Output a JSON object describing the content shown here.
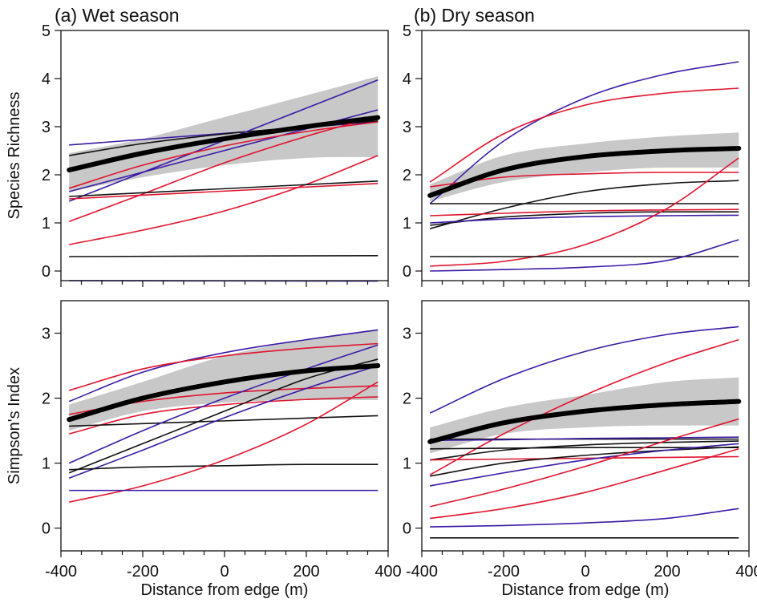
{
  "colors": {
    "black": "#111111",
    "red": "#e0142d",
    "blue": "#3a1aa6",
    "band": "#c8c8c8",
    "mean": "#000000"
  },
  "chart_data": [
    {
      "type": "line",
      "title": "(a) Wet season",
      "xlabel": "",
      "ylabel": "Species Richness",
      "xlim": [
        -400,
        400
      ],
      "ylim": [
        -0.2,
        5
      ],
      "x_ticks": [
        -400,
        -200,
        0,
        200,
        400
      ],
      "y_ticks": [
        0,
        1,
        2,
        3,
        4,
        5
      ],
      "x_tick_labels": [],
      "y_tick_labels": [
        "0",
        "1",
        "2",
        "3",
        "4",
        "5"
      ],
      "band": {
        "x": [
          -380,
          -200,
          0,
          200,
          375
        ],
        "lower": [
          1.65,
          1.95,
          2.2,
          2.35,
          2.37
        ],
        "upper": [
          2.45,
          2.75,
          3.2,
          3.65,
          4.05
        ]
      },
      "mean": {
        "x": [
          -380,
          -200,
          0,
          200,
          375
        ],
        "y": [
          2.1,
          2.45,
          2.75,
          3.0,
          3.19
        ]
      },
      "series": [
        {
          "color": "blue",
          "x": [
            -380,
            375
          ],
          "y": [
            2.62,
            3.1
          ]
        },
        {
          "color": "black",
          "x": [
            -380,
            -200,
            0,
            200,
            375
          ],
          "y": [
            2.4,
            2.65,
            2.85,
            3.0,
            3.12
          ]
        },
        {
          "color": "blue",
          "x": [
            -380,
            375
          ],
          "y": [
            1.45,
            3.97
          ]
        },
        {
          "color": "blue",
          "x": [
            -380,
            375
          ],
          "y": [
            1.65,
            3.35
          ]
        },
        {
          "color": "red",
          "x": [
            -380,
            -200,
            0,
            200,
            375
          ],
          "y": [
            1.72,
            2.2,
            2.6,
            2.9,
            3.1
          ]
        },
        {
          "color": "red",
          "x": [
            -380,
            -200,
            0,
            200,
            375
          ],
          "y": [
            1.03,
            1.6,
            2.25,
            2.8,
            3.22
          ]
        },
        {
          "color": "red",
          "x": [
            -380,
            -200,
            0,
            200,
            375
          ],
          "y": [
            0.55,
            0.85,
            1.25,
            1.8,
            2.4
          ]
        },
        {
          "color": "black",
          "x": [
            -380,
            375
          ],
          "y": [
            1.55,
            1.87
          ]
        },
        {
          "color": "red",
          "x": [
            -380,
            375
          ],
          "y": [
            1.5,
            1.82
          ]
        },
        {
          "color": "black",
          "x": [
            -380,
            375
          ],
          "y": [
            0.3,
            0.32
          ]
        },
        {
          "color": "blue",
          "x": [
            -380,
            375
          ],
          "y": [
            -0.2,
            -0.21
          ]
        }
      ]
    },
    {
      "type": "line",
      "title": "(b) Dry season",
      "xlabel": "",
      "ylabel": "",
      "xlim": [
        -400,
        400
      ],
      "ylim": [
        -0.2,
        5
      ],
      "x_ticks": [
        -400,
        -200,
        0,
        200,
        400
      ],
      "y_ticks": [
        0,
        1,
        2,
        3,
        4,
        5
      ],
      "x_tick_labels": [],
      "y_tick_labels": [
        "0",
        "1",
        "2",
        "3",
        "4",
        "5"
      ],
      "band": {
        "x": [
          -380,
          -200,
          0,
          200,
          375
        ],
        "lower": [
          1.45,
          1.85,
          2.05,
          2.15,
          2.15
        ],
        "upper": [
          1.8,
          2.4,
          2.65,
          2.8,
          2.88
        ]
      },
      "mean": {
        "x": [
          -380,
          -200,
          0,
          200,
          375
        ],
        "y": [
          1.57,
          2.1,
          2.38,
          2.5,
          2.55
        ]
      },
      "series": [
        {
          "color": "blue",
          "x": [
            -380,
            -200,
            0,
            200,
            375
          ],
          "y": [
            1.4,
            2.7,
            3.6,
            4.1,
            4.35
          ]
        },
        {
          "color": "red",
          "x": [
            -380,
            -200,
            0,
            200,
            375
          ],
          "y": [
            1.85,
            2.85,
            3.45,
            3.7,
            3.8
          ]
        },
        {
          "color": "red",
          "x": [
            -380,
            -200,
            0,
            200,
            375
          ],
          "y": [
            1.75,
            1.95,
            2.02,
            2.05,
            2.05
          ]
        },
        {
          "color": "black",
          "x": [
            -380,
            -200,
            0,
            200,
            375
          ],
          "y": [
            0.88,
            1.3,
            1.65,
            1.82,
            1.88
          ]
        },
        {
          "color": "black",
          "x": [
            -380,
            375
          ],
          "y": [
            1.4,
            1.4
          ]
        },
        {
          "color": "red",
          "x": [
            -380,
            -200,
            0,
            200,
            375
          ],
          "y": [
            1.15,
            1.2,
            1.25,
            1.27,
            1.28
          ]
        },
        {
          "color": "black",
          "x": [
            -380,
            -200,
            0,
            200,
            375
          ],
          "y": [
            0.95,
            1.12,
            1.2,
            1.23,
            1.23
          ]
        },
        {
          "color": "blue",
          "x": [
            -380,
            -200,
            0,
            200,
            375
          ],
          "y": [
            1.0,
            1.08,
            1.13,
            1.15,
            1.16
          ]
        },
        {
          "color": "red",
          "x": [
            -380,
            -200,
            0,
            200,
            375
          ],
          "y": [
            0.1,
            0.2,
            0.55,
            1.3,
            2.35
          ]
        },
        {
          "color": "black",
          "x": [
            -380,
            375
          ],
          "y": [
            0.3,
            0.3
          ]
        },
        {
          "color": "blue",
          "x": [
            -380,
            -200,
            0,
            200,
            375
          ],
          "y": [
            0.0,
            0.03,
            0.08,
            0.22,
            0.65
          ]
        }
      ]
    },
    {
      "type": "line",
      "title": "",
      "xlabel": "Distance from edge (m)",
      "ylabel": "Simpson's Index",
      "xlim": [
        -400,
        400
      ],
      "ylim": [
        -0.35,
        3.5
      ],
      "x_ticks": [
        -400,
        -200,
        0,
        200,
        400
      ],
      "y_ticks": [
        0,
        1,
        2,
        3
      ],
      "x_tick_labels": [
        "-400",
        "-200",
        "0",
        "200",
        "400"
      ],
      "y_tick_labels": [
        "0",
        "1",
        "2",
        "3"
      ],
      "band": {
        "x": [
          -380,
          -200,
          0,
          200,
          375
        ],
        "lower": [
          1.5,
          1.8,
          1.93,
          1.97,
          1.97
        ],
        "upper": [
          1.9,
          2.25,
          2.65,
          2.9,
          3.05
        ]
      },
      "mean": {
        "x": [
          -380,
          -200,
          0,
          200,
          375
        ],
        "y": [
          1.67,
          2.0,
          2.25,
          2.42,
          2.5
        ]
      },
      "series": [
        {
          "color": "blue",
          "x": [
            -380,
            -200,
            0,
            200,
            375
          ],
          "y": [
            1.95,
            2.4,
            2.7,
            2.9,
            3.05
          ]
        },
        {
          "color": "red",
          "x": [
            -380,
            -200,
            0,
            200,
            375
          ],
          "y": [
            2.12,
            2.45,
            2.65,
            2.77,
            2.84
          ]
        },
        {
          "color": "red",
          "x": [
            -380,
            -200,
            0,
            200,
            375
          ],
          "y": [
            1.75,
            1.95,
            2.08,
            2.15,
            2.19
          ]
        },
        {
          "color": "red",
          "x": [
            -380,
            -200,
            0,
            200,
            375
          ],
          "y": [
            1.45,
            1.75,
            1.9,
            1.98,
            2.02
          ]
        },
        {
          "color": "black",
          "x": [
            -380,
            375
          ],
          "y": [
            1.57,
            1.73
          ]
        },
        {
          "color": "blue",
          "x": [
            -380,
            -200,
            0,
            200,
            375
          ],
          "y": [
            1.0,
            1.5,
            2.0,
            2.45,
            2.82
          ]
        },
        {
          "color": "black",
          "x": [
            -380,
            -200,
            0,
            200,
            375
          ],
          "y": [
            0.85,
            1.3,
            1.8,
            2.3,
            2.6
          ]
        },
        {
          "color": "blue",
          "x": [
            -380,
            -200,
            0,
            200,
            375
          ],
          "y": [
            0.77,
            1.2,
            1.7,
            2.15,
            2.5
          ]
        },
        {
          "color": "black",
          "x": [
            -380,
            -200,
            0,
            200,
            375
          ],
          "y": [
            0.9,
            0.94,
            0.96,
            0.98,
            0.98
          ]
        },
        {
          "color": "red",
          "x": [
            -380,
            -200,
            0,
            200,
            375
          ],
          "y": [
            0.4,
            0.65,
            1.05,
            1.6,
            2.25
          ]
        },
        {
          "color": "blue",
          "x": [
            -380,
            375
          ],
          "y": [
            0.58,
            0.58
          ]
        }
      ]
    },
    {
      "type": "line",
      "title": "",
      "xlabel": "Distance from edge (m)",
      "ylabel": "",
      "xlim": [
        -400,
        400
      ],
      "ylim": [
        -0.35,
        3.5
      ],
      "x_ticks": [
        -400,
        -200,
        0,
        200,
        400
      ],
      "y_ticks": [
        0,
        1,
        2,
        3
      ],
      "x_tick_labels": [
        "-400",
        "-200",
        "0",
        "200",
        "400"
      ],
      "y_tick_labels": [
        "0",
        "1",
        "2",
        "3"
      ],
      "band": {
        "x": [
          -380,
          -200,
          0,
          200,
          375
        ],
        "lower": [
          1.15,
          1.45,
          1.55,
          1.58,
          1.58
        ],
        "upper": [
          1.55,
          1.85,
          2.05,
          2.25,
          2.32
        ]
      },
      "mean": {
        "x": [
          -380,
          -200,
          0,
          200,
          375
        ],
        "y": [
          1.33,
          1.62,
          1.8,
          1.9,
          1.95
        ]
      },
      "series": [
        {
          "color": "blue",
          "x": [
            -380,
            -200,
            0,
            200,
            375
          ],
          "y": [
            1.77,
            2.3,
            2.72,
            2.98,
            3.1
          ]
        },
        {
          "color": "red",
          "x": [
            -380,
            -200,
            0,
            200,
            375
          ],
          "y": [
            0.82,
            1.45,
            2.05,
            2.55,
            2.9
          ]
        },
        {
          "color": "black",
          "x": [
            -380,
            375
          ],
          "y": [
            1.37,
            1.37
          ]
        },
        {
          "color": "blue",
          "x": [
            -380,
            -200,
            0,
            200,
            375
          ],
          "y": [
            1.35,
            1.36,
            1.38,
            1.39,
            1.4
          ]
        },
        {
          "color": "black",
          "x": [
            -380,
            -200,
            0,
            200,
            375
          ],
          "y": [
            1.05,
            1.2,
            1.28,
            1.32,
            1.34
          ]
        },
        {
          "color": "black",
          "x": [
            -380,
            -200,
            0,
            200,
            375
          ],
          "y": [
            1.22,
            1.23,
            1.24,
            1.24,
            1.24
          ]
        },
        {
          "color": "red",
          "x": [
            -380,
            375
          ],
          "y": [
            1.05,
            1.1
          ]
        },
        {
          "color": "black",
          "x": [
            -380,
            -200,
            0,
            200,
            375
          ],
          "y": [
            0.8,
            1.0,
            1.12,
            1.2,
            1.25
          ]
        },
        {
          "color": "blue",
          "x": [
            -380,
            -200,
            0,
            200,
            375
          ],
          "y": [
            0.65,
            0.85,
            1.05,
            1.2,
            1.3
          ]
        },
        {
          "color": "red",
          "x": [
            -380,
            -200,
            0,
            200,
            375
          ],
          "y": [
            0.33,
            0.6,
            0.95,
            1.35,
            1.68
          ]
        },
        {
          "color": "red",
          "x": [
            -380,
            -200,
            0,
            200,
            375
          ],
          "y": [
            0.15,
            0.3,
            0.55,
            0.9,
            1.22
          ]
        },
        {
          "color": "blue",
          "x": [
            -380,
            -200,
            0,
            200,
            375
          ],
          "y": [
            0.02,
            0.04,
            0.08,
            0.15,
            0.3
          ]
        },
        {
          "color": "black",
          "x": [
            -380,
            375
          ],
          "y": [
            -0.15,
            -0.15
          ]
        }
      ]
    }
  ]
}
